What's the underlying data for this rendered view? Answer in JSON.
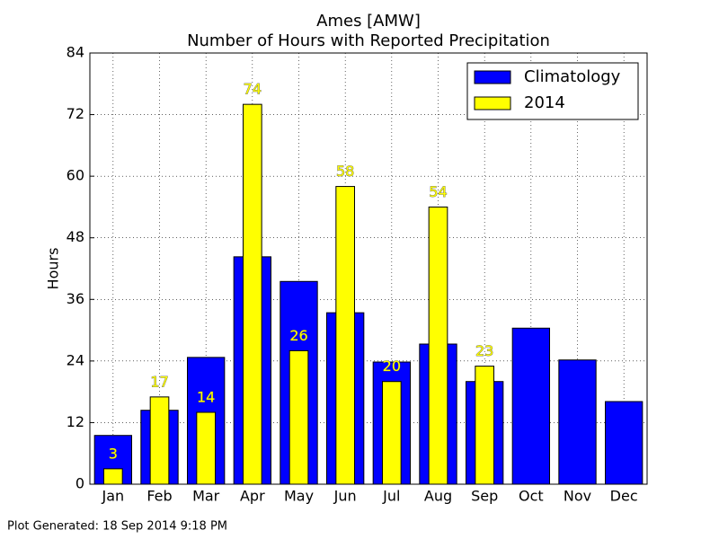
{
  "chart_data": {
    "type": "bar",
    "title": "Ames [AMW]",
    "subtitle": "Number of Hours with Reported Precipitation",
    "y_label": "Hours",
    "footer": "Plot Generated: 18 Sep 2014 9:18 PM",
    "categories": [
      "Jan",
      "Feb",
      "Mar",
      "Apr",
      "May",
      "Jun",
      "Jul",
      "Aug",
      "Sep",
      "Oct",
      "Nov",
      "Dec"
    ],
    "series": [
      {
        "name": "Climatology",
        "color": "#0000ff",
        "values": [
          9.5,
          14.4,
          24.7,
          44.3,
          39.5,
          33.4,
          23.8,
          27.3,
          20.0,
          30.4,
          24.2,
          16.1
        ]
      },
      {
        "name": "2014",
        "color": "#ffff00",
        "values": [
          3,
          17,
          14,
          74,
          26,
          58,
          20,
          54,
          23,
          null,
          null,
          null
        ]
      }
    ],
    "ylim": [
      0,
      84
    ],
    "yticks": [
      0,
      12,
      24,
      36,
      48,
      60,
      72,
      84
    ],
    "grid": true,
    "legend": "upper right"
  }
}
